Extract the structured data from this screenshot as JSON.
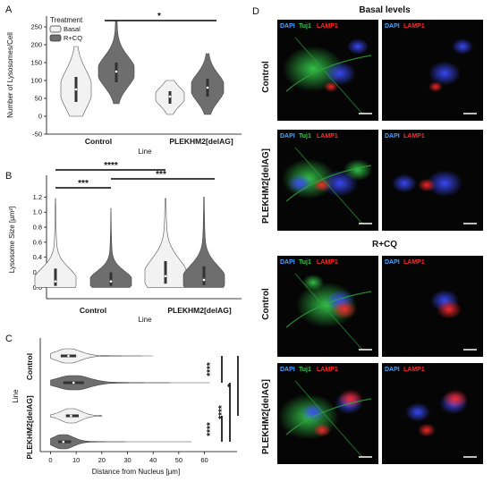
{
  "panels": {
    "A": {
      "label": "A",
      "legend_title": "Treatment",
      "ylabel": "Number of Lysosomes/Cell",
      "xlabel": "Line",
      "significance": "*"
    },
    "B": {
      "label": "B",
      "ylabel": "Lysosome Size [µm²]",
      "xlabel": "Line",
      "significance": [
        "****",
        "***",
        "***"
      ]
    },
    "C": {
      "label": "C",
      "ylabel": "Line",
      "xlabel": "Distance from Nucleus [µm]",
      "significance": [
        "****",
        "****",
        "****",
        "*"
      ]
    },
    "D": {
      "label": "D",
      "section_basal": "Basal levels",
      "section_rcq": "R+CQ",
      "row_control": "Control",
      "row_plekhm2": "PLEKHM2[delAG]",
      "ch_dapi": "DAPI",
      "ch_tuj1": "Tuj1",
      "ch_lamp1": "LAMP1"
    }
  },
  "chart_data": [
    {
      "type": "violin",
      "panel": "A",
      "categories": [
        "Control",
        "PLEKHM2[delAG]"
      ],
      "legend": [
        "Basal",
        "R+CQ"
      ],
      "series": [
        {
          "name": "Basal",
          "median": [
            75,
            55
          ],
          "q1": [
            40,
            35
          ],
          "q3": [
            110,
            70
          ],
          "min": [
            0,
            5
          ],
          "max": [
            195,
            100
          ]
        },
        {
          "name": "R+CQ",
          "median": [
            125,
            80
          ],
          "q1": [
            95,
            55
          ],
          "q3": [
            150,
            105
          ],
          "min": [
            35,
            5
          ],
          "max": [
            265,
            175
          ]
        }
      ],
      "ylim": [
        -50,
        270
      ],
      "yticks": [
        -50,
        0,
        50,
        100,
        150,
        200,
        250
      ],
      "xlabel": "Line",
      "ylabel": "Number of Lysosomes/Cell"
    },
    {
      "type": "violin",
      "panel": "B",
      "categories": [
        "Control",
        "PLEKHM2[delAG]"
      ],
      "series": [
        {
          "name": "Basal",
          "median": [
            0.08,
            0.15
          ],
          "q1": [
            0.02,
            0.05
          ],
          "q3": [
            0.25,
            0.35
          ],
          "min": [
            0,
            0
          ],
          "max": [
            1.18,
            1.18
          ]
        },
        {
          "name": "R+CQ",
          "median": [
            0.08,
            0.1
          ],
          "q1": [
            0.02,
            0.03
          ],
          "q3": [
            0.2,
            0.28
          ],
          "min": [
            0,
            0
          ],
          "max": [
            1.05,
            1.2
          ]
        }
      ],
      "ylim": [
        -0.15,
        1.3
      ],
      "yticks": [
        0,
        0.2,
        0.4,
        0.6,
        0.8,
        1.0,
        1.2
      ],
      "xlabel": "Line",
      "ylabel": "Lysosome Size [µm²]"
    },
    {
      "type": "violin",
      "panel": "C",
      "orientation": "horizontal",
      "categories": [
        "Control",
        "PLEKHM2[delAG]"
      ],
      "series": [
        {
          "name": "Basal",
          "median": [
            7,
            8
          ],
          "q1": [
            4,
            6
          ],
          "q3": [
            10,
            11
          ],
          "min": [
            0,
            0
          ],
          "max": [
            40,
            20
          ]
        },
        {
          "name": "R+CQ",
          "median": [
            9,
            5
          ],
          "q1": [
            5,
            3
          ],
          "q3": [
            13,
            8
          ],
          "min": [
            0,
            0
          ],
          "max": [
            62,
            55
          ]
        }
      ],
      "xlim": [
        -4,
        64
      ],
      "xticks": [
        0,
        10,
        20,
        30,
        40,
        50,
        60
      ],
      "xlabel": "Distance from Nucleus [µm]",
      "ylabel": "Line"
    }
  ]
}
